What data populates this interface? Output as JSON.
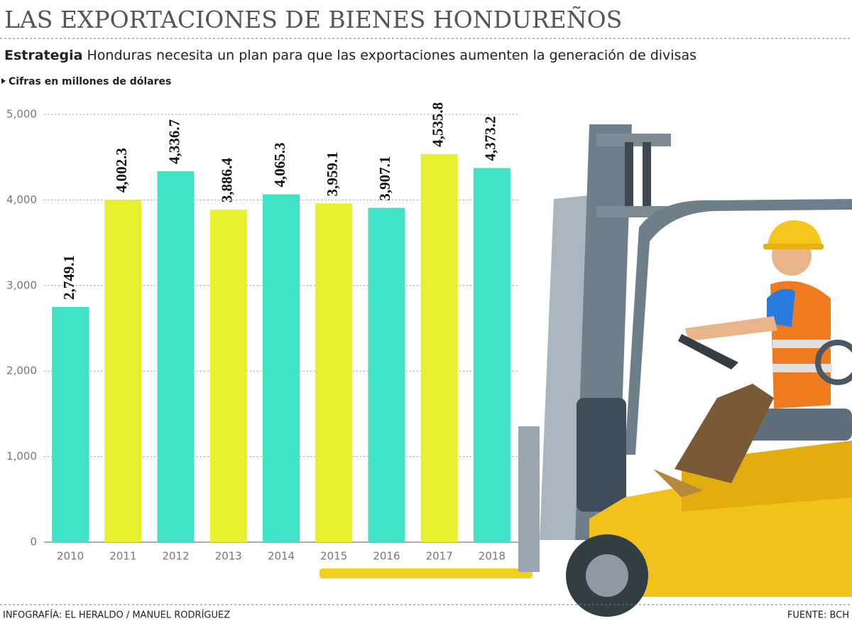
{
  "chart_data": {
    "type": "bar",
    "title": "LAS EXPORTACIONES DE BIENES HONDUREÑOS",
    "subtitle_lead": "Estrategia",
    "subtitle": "Honduras necesita un plan para que las exportaciones aumenten la generación de divisas",
    "unit_label": "Cifras en millones de dólares",
    "categories": [
      "2010",
      "2011",
      "2012",
      "2013",
      "2014",
      "2015",
      "2016",
      "2017",
      "2018"
    ],
    "values": [
      2749.1,
      4002.3,
      4336.7,
      3886.4,
      4065.3,
      3959.1,
      3907.1,
      4535.8,
      4373.2
    ],
    "value_labels": [
      "2,749.1",
      "4,002.3",
      "4,336.7",
      "3,886.4",
      "4,065.3",
      "3,959.1",
      "3,907.1",
      "4,535.8",
      "4,373.2"
    ],
    "colors": [
      "#41e3c6",
      "#e7f02c",
      "#41e3c6",
      "#e7f02c",
      "#41e3c6",
      "#e7f02c",
      "#41e3c6",
      "#e7f02c",
      "#41e3c6"
    ],
    "ylim": [
      0,
      5000
    ],
    "yticks": [
      0,
      {
        "value": 1000,
        "label": "1,000"
      },
      {
        "value": 2000,
        "label": "2,000"
      },
      {
        "value": 3000,
        "label": "3,000"
      },
      {
        "value": 4000,
        "label": "4,000"
      },
      {
        "value": 5000,
        "label": "5,000"
      }
    ],
    "grid": true,
    "credit": "INFOGRAFÍA: EL HERALDO / MANUEL RODRÍGUEZ",
    "source": "FUENTE: BCH"
  }
}
